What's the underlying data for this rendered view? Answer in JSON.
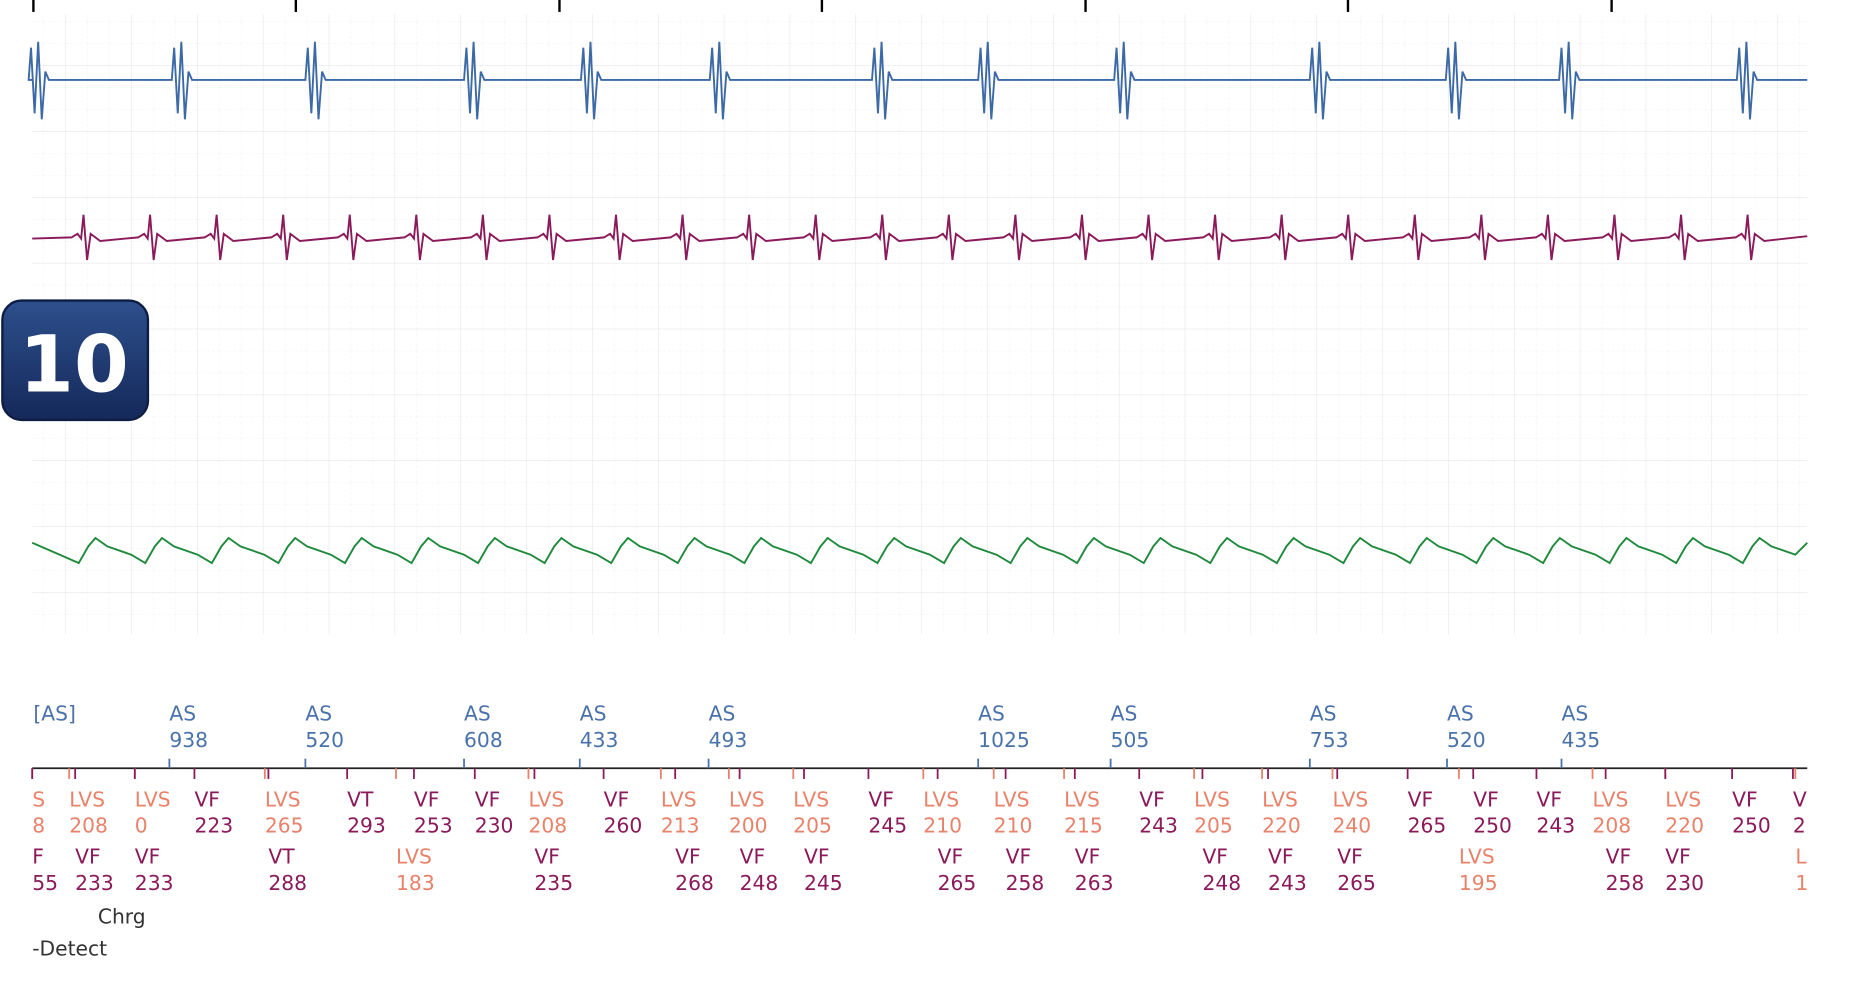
{
  "badge": "10",
  "atrial_markers": [
    {
      "label": "[AS]"
    },
    {
      "label": "AS",
      "interval": 938
    },
    {
      "label": "AS",
      "interval": 520
    },
    {
      "label": "AS",
      "interval": 608
    },
    {
      "label": "AS",
      "interval": 433
    },
    {
      "label": "AS",
      "interval": 493
    },
    {
      "label": "AS",
      "interval": 1025
    },
    {
      "label": "AS",
      "interval": 505
    },
    {
      "label": "AS",
      "interval": 753
    },
    {
      "label": "AS",
      "interval": 520
    },
    {
      "label": "AS",
      "interval": 435
    }
  ],
  "ventricular_markers_row1": [
    {
      "label": "S",
      "interval": 8
    },
    {
      "label": "LVS",
      "interval": 208
    },
    {
      "label": "LVS",
      "interval": 0
    },
    {
      "label": "VF",
      "interval": 223
    },
    {
      "label": "LVS",
      "interval": 265
    },
    {
      "label": "VT",
      "interval": 293
    },
    {
      "label": "VF",
      "interval": 253
    },
    {
      "label": "VF",
      "interval": 230
    },
    {
      "label": "LVS",
      "interval": 208
    },
    {
      "label": "VF",
      "interval": 260
    },
    {
      "label": "LVS",
      "interval": 213
    },
    {
      "label": "LVS",
      "interval": 200
    },
    {
      "label": "LVS",
      "interval": 205
    },
    {
      "label": "VF",
      "interval": 245
    },
    {
      "label": "LVS",
      "interval": 210
    },
    {
      "label": "LVS",
      "interval": 210
    },
    {
      "label": "LVS",
      "interval": 215
    },
    {
      "label": "VF",
      "interval": 243
    },
    {
      "label": "LVS",
      "interval": 205
    },
    {
      "label": "LVS",
      "interval": 220
    },
    {
      "label": "LVS",
      "interval": 240
    },
    {
      "label": "VF",
      "interval": 265
    },
    {
      "label": "VF",
      "interval": 250
    },
    {
      "label": "VF",
      "interval": 243
    },
    {
      "label": "LVS",
      "interval": 208
    },
    {
      "label": "LVS",
      "interval": 220
    },
    {
      "label": "VF",
      "interval": 250
    },
    {
      "label": "V",
      "interval": 2
    }
  ],
  "ventricular_markers_row2": [
    {
      "label": "F",
      "interval": 55
    },
    {
      "label": "VF",
      "interval": 233
    },
    {
      "label": "VF",
      "interval": 233
    },
    {
      "label": "VT",
      "interval": 288
    },
    {
      "label": "LVS",
      "interval": 183
    },
    {
      "label": "VF",
      "interval": 235
    },
    {
      "label": "VF",
      "interval": 268
    },
    {
      "label": "VF",
      "interval": 248
    },
    {
      "label": "VF",
      "interval": 245
    },
    {
      "label": "VF",
      "interval": 265
    },
    {
      "label": "VF",
      "interval": 258
    },
    {
      "label": "VF",
      "interval": 263
    },
    {
      "label": "VF",
      "interval": 248
    },
    {
      "label": "VF",
      "interval": 243
    },
    {
      "label": "VF",
      "interval": 265
    },
    {
      "label": "LVS",
      "interval": 195
    },
    {
      "label": "VF",
      "interval": 258
    },
    {
      "label": "VF",
      "interval": 230
    },
    {
      "label": "L",
      "interval": 1
    }
  ],
  "notes": [
    "Chrg",
    "-Detect"
  ]
}
